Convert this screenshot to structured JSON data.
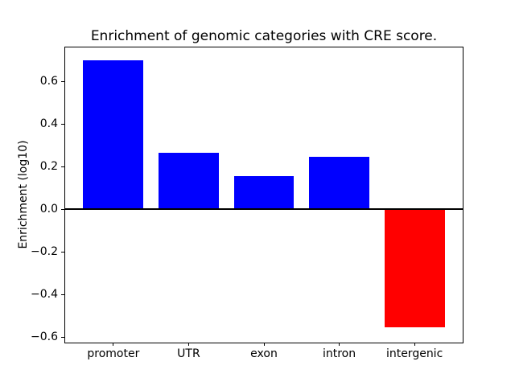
{
  "figure": {
    "background": "#ffffff",
    "axes_color": "#000000"
  },
  "chart_data": {
    "type": "bar",
    "title": "Enrichment of genomic categories with CRE score.",
    "xlabel": "",
    "ylabel": "Enrichment (log10)",
    "categories": [
      "promoter",
      "UTR",
      "exon",
      "intron",
      "intergenic"
    ],
    "values": [
      0.7,
      0.265,
      0.155,
      0.245,
      -0.555
    ],
    "bar_colors": [
      "#0000ff",
      "#0000ff",
      "#0000ff",
      "#0000ff",
      "#ff0000"
    ],
    "positive_color": "#0000ff",
    "negative_color": "#ff0000",
    "yticks": [
      0.6,
      0.4,
      0.2,
      0.0,
      -0.2,
      -0.4,
      -0.6
    ],
    "ytick_labels": [
      "0.6",
      "0.4",
      "0.2",
      "0.0",
      "−0.2",
      "−0.4",
      "−0.6"
    ],
    "ylim": [
      -0.625,
      0.76
    ],
    "xlim": [
      -0.64,
      4.64
    ],
    "bar_width_fraction": 0.8,
    "zero_line": true,
    "zero_line_color": "#000000",
    "grid": false,
    "legend": null
  }
}
